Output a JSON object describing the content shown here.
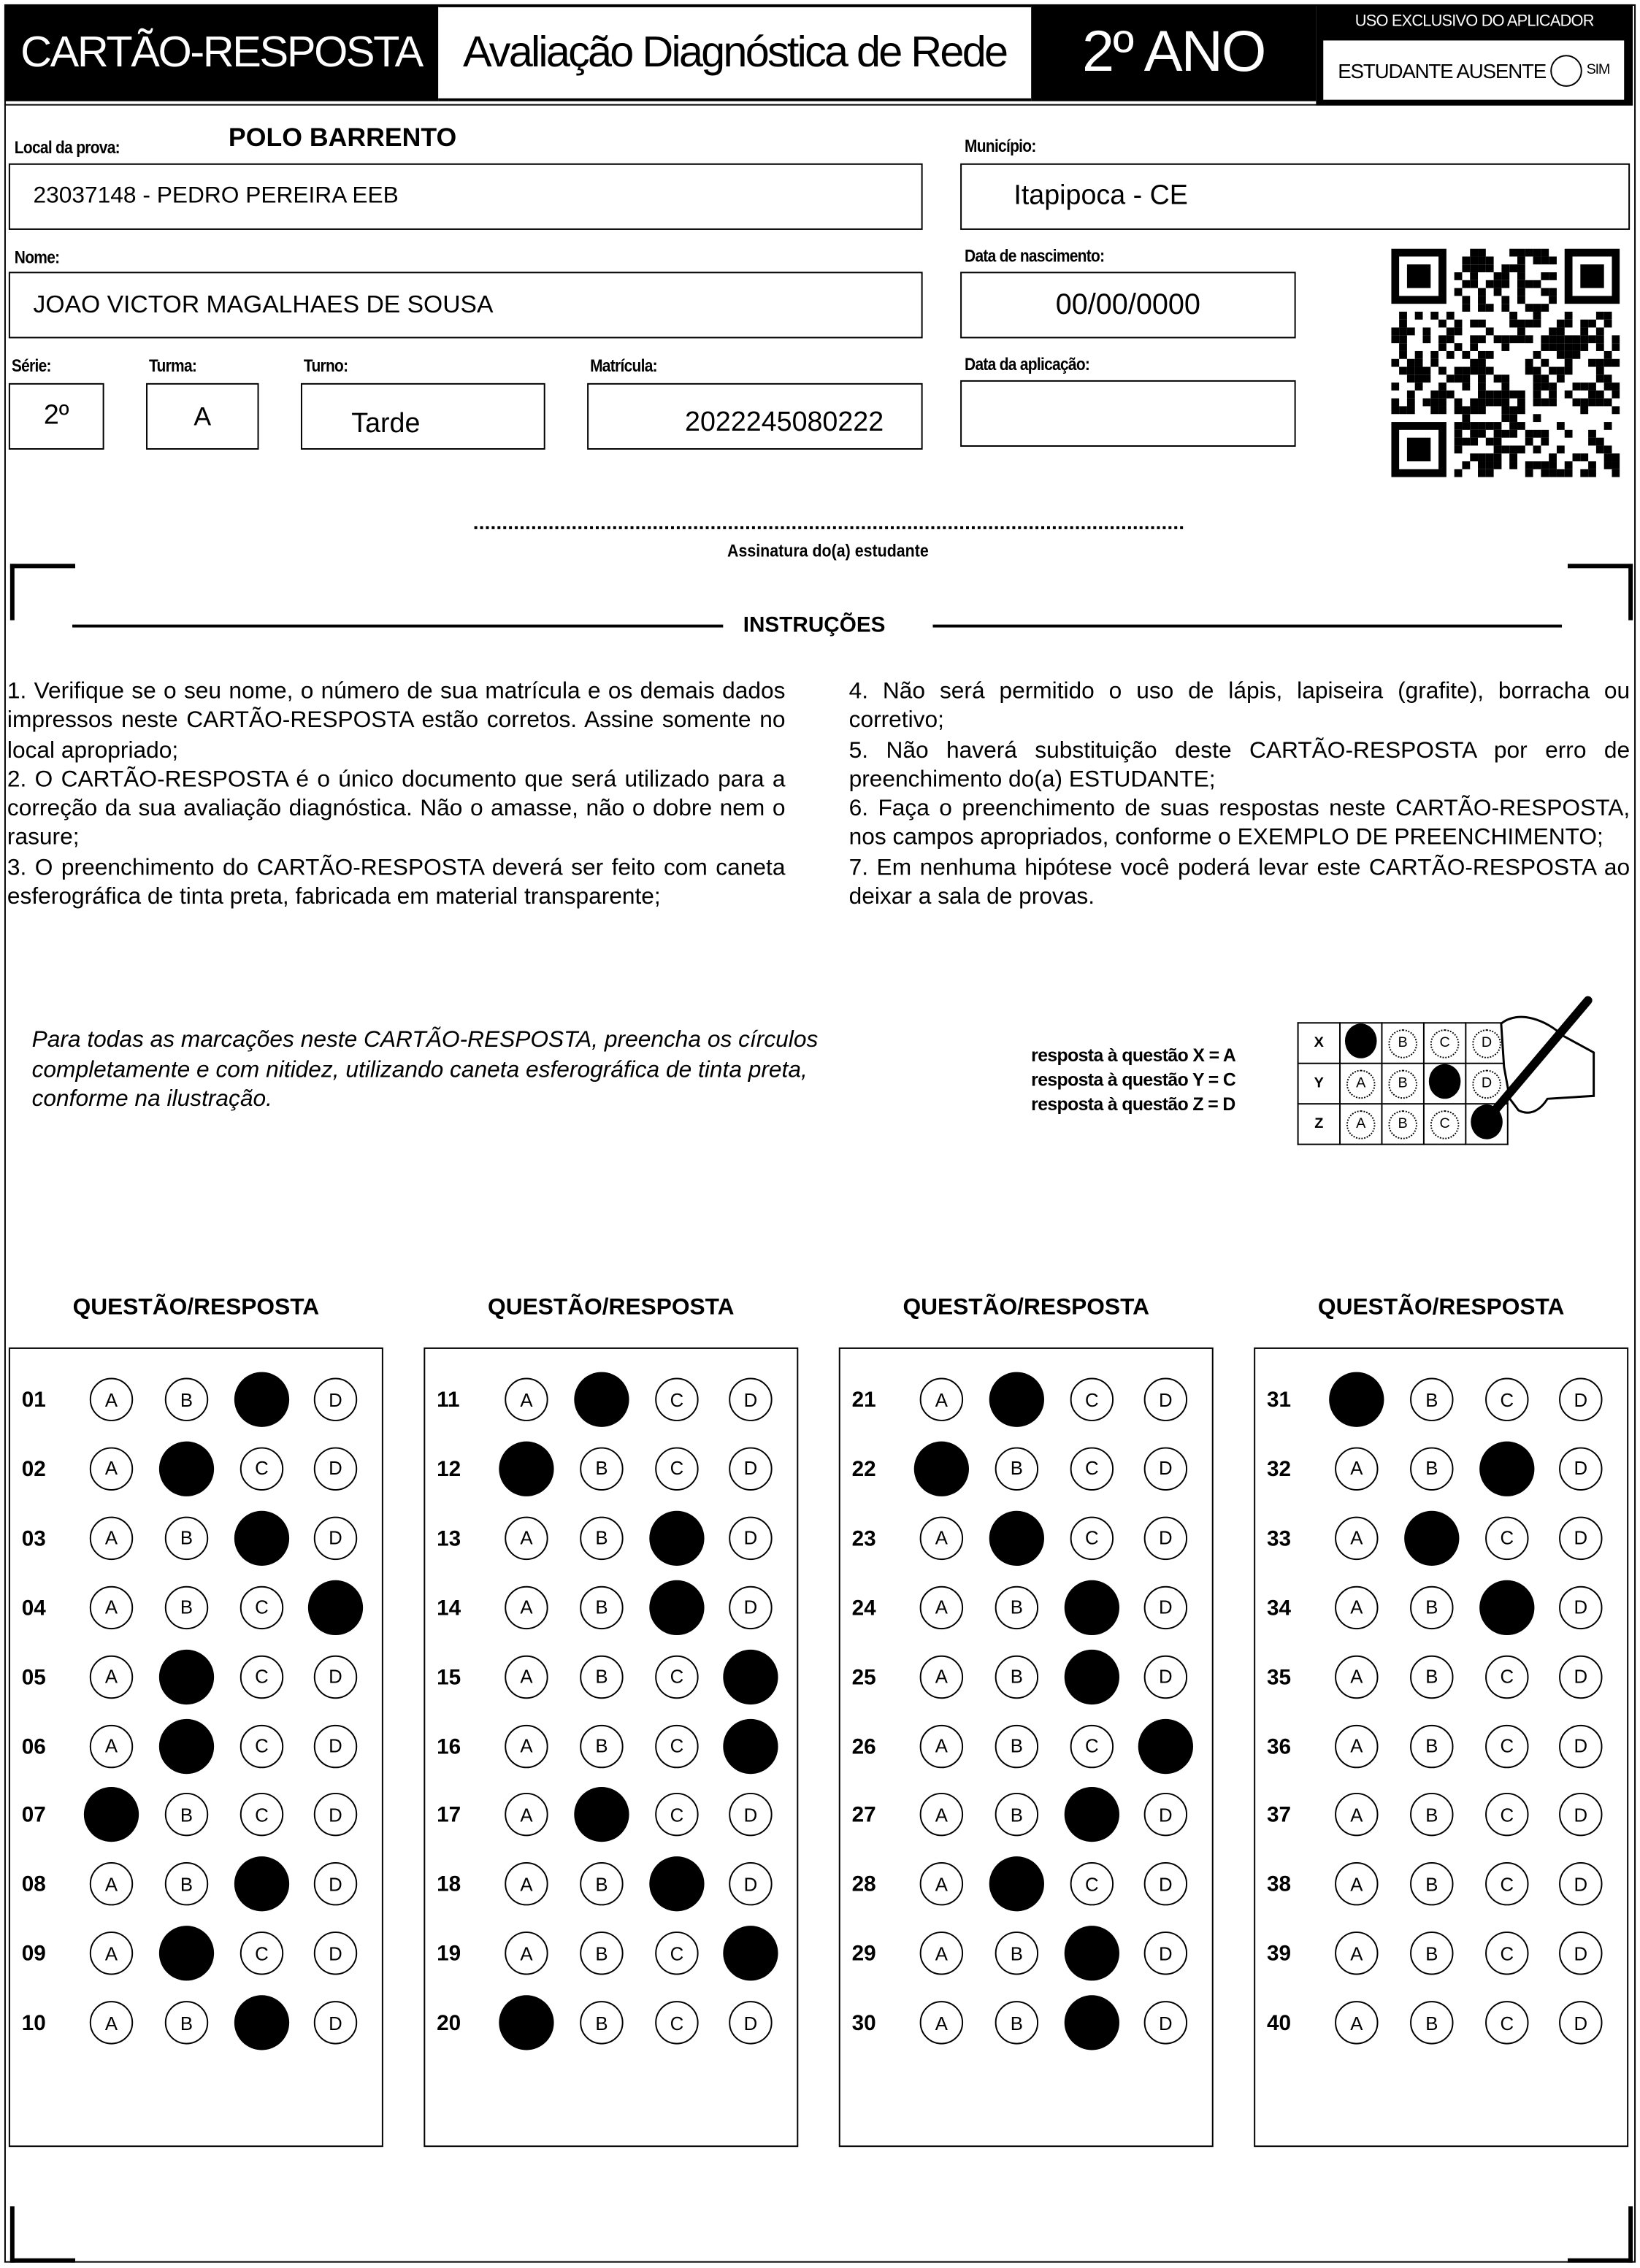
{
  "header": {
    "title": "CARTÃO-RESPOSTA",
    "evaluation": "Avaliação Diagnóstica de Rede",
    "grade": "2º ANO",
    "applicator_label": "USO EXCLUSIVO DO APLICADOR",
    "absent_label": "ESTUDANTE AUSENTE",
    "absent_option": "SIM"
  },
  "fields": {
    "local_label": "Local da prova:",
    "local_polo": "POLO BARRENTO",
    "local_value": "23037148 - PEDRO PEREIRA EEB",
    "municipio_label": "Município:",
    "municipio_value": "Itapipoca - CE",
    "nome_label": "Nome:",
    "nome_value": "JOAO VICTOR MAGALHAES DE SOUSA",
    "nascimento_label": "Data de nascimento:",
    "nascimento_value": "00/00/0000",
    "serie_label": "Série:",
    "serie_value": "2º",
    "turma_label": "Turma:",
    "turma_value": "A",
    "turno_label": "Turno:",
    "turno_value": "Tarde",
    "matricula_label": "Matrícula:",
    "matricula_value": "2022245080222",
    "aplicacao_label": "Data da aplicação:",
    "aplicacao_value": "",
    "assinatura_label": "Assinatura do(a) estudante"
  },
  "instructions": {
    "title": "INSTRUÇÕES",
    "left": [
      "1. Verifique se o seu nome, o número de sua matrícula e os demais dados impressos neste CARTÃO-RESPOSTA estão corretos. Assine somente no local apropriado;",
      "2. O CARTÃO-RESPOSTA é o único documento que será utilizado para a correção da sua avaliação diagnóstica. Não o amasse, não o dobre nem o rasure;",
      "3. O preenchimento do CARTÃO-RESPOSTA deverá ser feito com caneta esferográfica de tinta preta, fabricada em material transparente;"
    ],
    "right": [
      "4. Não será permitido o uso de lápis, lapiseira (grafite), borracha ou corretivo;",
      "5. Não haverá substituição deste CARTÃO-RESPOSTA por erro de preenchimento do(a) ESTUDANTE;",
      "6. Faça o preenchimento de suas respostas neste CARTÃO-RESPOSTA, nos campos apropriados, conforme o EXEMPLO DE PREENCHIMENTO;",
      "7. Em nenhuma hipótese você poderá levar este CARTÃO-RESPOSTA ao deixar a sala de provas."
    ],
    "note": "Para todas as marcações neste CARTÃO-RESPOSTA, preencha os círculos completamente e com nitidez, utilizando caneta esferográfica de tinta preta, conforme na ilustração."
  },
  "example": {
    "lines": [
      "resposta à questão X = A",
      "resposta à questão Y = C",
      "resposta à questão Z = D"
    ],
    "rows": [
      {
        "q": "X",
        "answer": "A"
      },
      {
        "q": "Y",
        "answer": "C"
      },
      {
        "q": "Z",
        "answer": "D"
      }
    ]
  },
  "options": [
    "A",
    "B",
    "C",
    "D"
  ],
  "section_heading": "QUESTÃO/RESPOSTA",
  "answers": [
    {
      "n": "01",
      "a": "C"
    },
    {
      "n": "02",
      "a": "B"
    },
    {
      "n": "03",
      "a": "C"
    },
    {
      "n": "04",
      "a": "D"
    },
    {
      "n": "05",
      "a": "B"
    },
    {
      "n": "06",
      "a": "B"
    },
    {
      "n": "07",
      "a": "A"
    },
    {
      "n": "08",
      "a": "C"
    },
    {
      "n": "09",
      "a": "B"
    },
    {
      "n": "10",
      "a": "C"
    },
    {
      "n": "11",
      "a": "B"
    },
    {
      "n": "12",
      "a": "A"
    },
    {
      "n": "13",
      "a": "C"
    },
    {
      "n": "14",
      "a": "C"
    },
    {
      "n": "15",
      "a": "D"
    },
    {
      "n": "16",
      "a": "D"
    },
    {
      "n": "17",
      "a": "B"
    },
    {
      "n": "18",
      "a": "C"
    },
    {
      "n": "19",
      "a": "D"
    },
    {
      "n": "20",
      "a": "A"
    },
    {
      "n": "21",
      "a": "B"
    },
    {
      "n": "22",
      "a": "A"
    },
    {
      "n": "23",
      "a": "B"
    },
    {
      "n": "24",
      "a": "C"
    },
    {
      "n": "25",
      "a": "C"
    },
    {
      "n": "26",
      "a": "D"
    },
    {
      "n": "27",
      "a": "C"
    },
    {
      "n": "28",
      "a": "B"
    },
    {
      "n": "29",
      "a": "C"
    },
    {
      "n": "30",
      "a": "C"
    },
    {
      "n": "31",
      "a": "A"
    },
    {
      "n": "32",
      "a": "C"
    },
    {
      "n": "33",
      "a": "B"
    },
    {
      "n": "34",
      "a": "C"
    },
    {
      "n": "35",
      "a": ""
    },
    {
      "n": "36",
      "a": ""
    },
    {
      "n": "37",
      "a": ""
    },
    {
      "n": "38",
      "a": ""
    },
    {
      "n": "39",
      "a": ""
    },
    {
      "n": "40",
      "a": ""
    }
  ]
}
